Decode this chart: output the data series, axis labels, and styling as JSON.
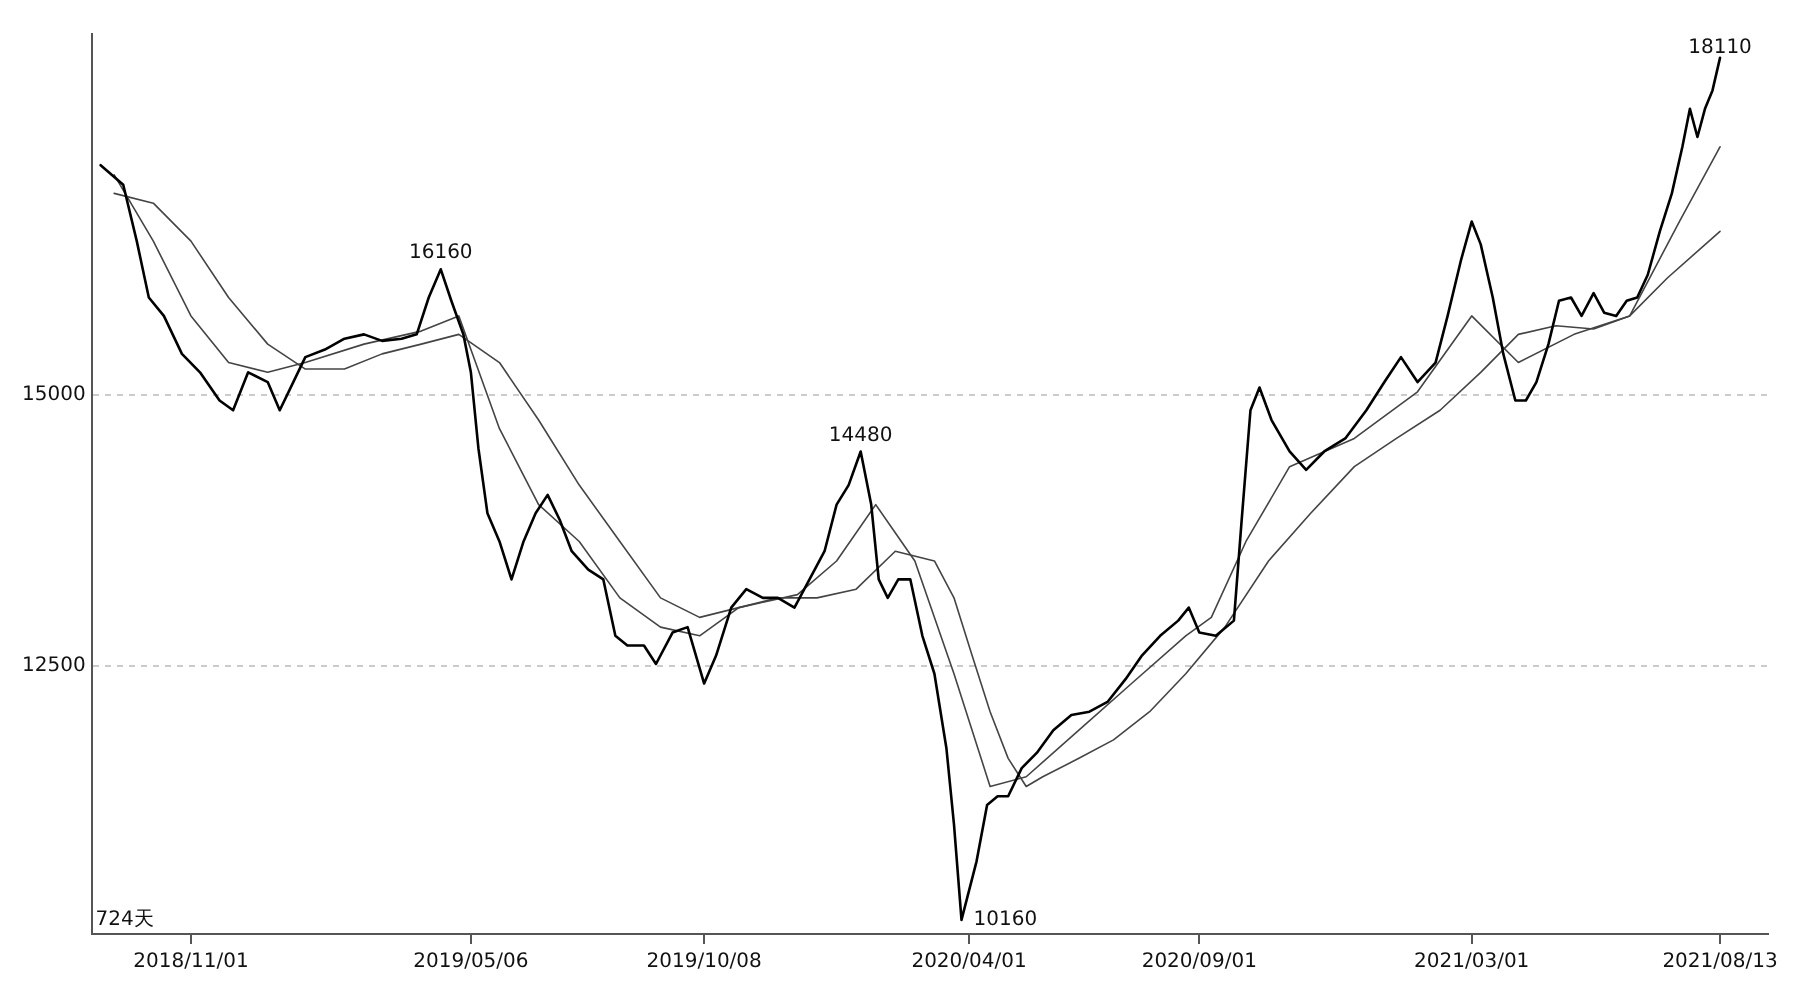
{
  "chart_data": {
    "type": "line",
    "marker": "none",
    "line_style": "solid",
    "legend": false,
    "grid": "y",
    "xlim": [
      "2018-08-27",
      "2021-09-14"
    ],
    "xticks": [
      {
        "value": "2018-11-01",
        "label": "2018/11/01"
      },
      {
        "value": "2019-05-06",
        "label": "2019/05/06"
      },
      {
        "value": "2019-10-08",
        "label": "2019/10/08"
      },
      {
        "value": "2020-04-01",
        "label": "2020/04/01"
      },
      {
        "value": "2020-09-01",
        "label": "2020/09/01"
      },
      {
        "value": "2021-03-01",
        "label": "2021/03/01"
      },
      {
        "value": "2021-08-13",
        "label": "2021/08/13"
      }
    ],
    "ylim": [
      10030,
      18330
    ],
    "yticks": [
      12500,
      15000
    ],
    "annotations": [
      {
        "text": "16160",
        "x": "2019-04-16",
        "y": 16160
      },
      {
        "text": "14480",
        "x": "2020-01-20",
        "y": 14480
      },
      {
        "text": "10160",
        "x": "2020-03-27",
        "y": 10160
      },
      {
        "text": "18110",
        "x": "2021-08-13",
        "y": 18110
      },
      "724天"
    ],
    "series": [
      {
        "color": "#000000",
        "x": [
          "2018-09-02",
          "2018-09-17",
          "2018-09-26",
          "2018-10-04",
          "2018-10-14",
          "2018-10-26",
          "2018-11-07",
          "2018-11-20",
          "2018-11-29",
          "2018-12-09",
          "2018-12-22",
          "2018-12-30",
          "2019-01-08",
          "2019-01-16",
          "2019-01-29",
          "2019-02-11",
          "2019-02-24",
          "2019-03-08",
          "2019-03-21",
          "2019-03-31",
          "2019-04-08",
          "2019-04-16",
          "2019-04-23",
          "2019-05-01",
          "2019-05-06",
          "2019-05-11",
          "2019-05-17",
          "2019-05-25",
          "2019-06-02",
          "2019-06-10",
          "2019-06-18",
          "2019-06-26",
          "2019-07-04",
          "2019-07-12",
          "2019-07-23",
          "2019-08-02",
          "2019-08-10",
          "2019-08-18",
          "2019-08-29",
          "2019-09-06",
          "2019-09-17",
          "2019-09-27",
          "2019-10-08",
          "2019-10-16",
          "2019-10-26",
          "2019-11-05",
          "2019-11-16",
          "2019-11-26",
          "2019-12-07",
          "2019-12-17",
          "2019-12-27",
          "2020-01-04",
          "2020-01-12",
          "2020-01-20",
          "2020-01-27",
          "2020-02-01",
          "2020-02-07",
          "2020-02-14",
          "2020-02-22",
          "2020-03-01",
          "2020-03-09",
          "2020-03-17",
          "2020-03-22",
          "2020-03-27",
          "2020-04-01",
          "2020-04-06",
          "2020-04-13",
          "2020-04-20",
          "2020-04-27",
          "2020-05-06",
          "2020-05-16",
          "2020-05-27",
          "2020-06-08",
          "2020-06-20",
          "2020-07-02",
          "2020-07-14",
          "2020-07-25",
          "2020-08-06",
          "2020-08-18",
          "2020-08-25",
          "2020-09-01",
          "2020-09-12",
          "2020-09-24",
          "2020-09-29",
          "2020-10-05",
          "2020-10-11",
          "2020-10-19",
          "2020-10-31",
          "2020-11-11",
          "2020-11-23",
          "2020-12-07",
          "2020-12-21",
          "2021-01-02",
          "2021-01-13",
          "2021-01-24",
          "2021-02-05",
          "2021-02-13",
          "2021-02-22",
          "2021-03-01",
          "2021-03-07",
          "2021-03-15",
          "2021-03-22",
          "2021-03-30",
          "2021-04-06",
          "2021-04-13",
          "2021-04-21",
          "2021-04-28",
          "2021-05-06",
          "2021-05-13",
          "2021-05-21",
          "2021-05-28",
          "2021-06-05",
          "2021-06-12",
          "2021-06-19",
          "2021-06-26",
          "2021-07-04",
          "2021-07-12",
          "2021-07-19",
          "2021-07-24",
          "2021-07-29",
          "2021-08-03",
          "2021-08-08",
          "2021-08-13"
        ],
        "values": [
          17120,
          16940,
          16420,
          15900,
          15730,
          15380,
          15210,
          14950,
          14860,
          15210,
          15120,
          14860,
          15120,
          15350,
          15420,
          15520,
          15560,
          15500,
          15520,
          15560,
          15900,
          16160,
          15870,
          15560,
          15210,
          14510,
          13910,
          13650,
          13300,
          13650,
          13910,
          14080,
          13850,
          13560,
          13390,
          13300,
          12780,
          12690,
          12690,
          12520,
          12810,
          12860,
          12340,
          12600,
          13040,
          13210,
          13130,
          13130,
          13040,
          13300,
          13560,
          13990,
          14170,
          14480,
          13990,
          13300,
          13130,
          13300,
          13300,
          12780,
          12430,
          11740,
          11040,
          10160,
          10430,
          10700,
          11220,
          11300,
          11300,
          11560,
          11700,
          11910,
          12050,
          12080,
          12170,
          12380,
          12600,
          12780,
          12920,
          13040,
          12810,
          12780,
          12920,
          13820,
          14860,
          15070,
          14770,
          14480,
          14310,
          14480,
          14600,
          14860,
          15120,
          15350,
          15120,
          15300,
          15730,
          16250,
          16600,
          16390,
          15900,
          15380,
          14950,
          14950,
          15120,
          15470,
          15870,
          15900,
          15730,
          15940,
          15760,
          15730,
          15870,
          15900,
          16110,
          16510,
          16860,
          17290,
          17640,
          17380,
          17640,
          17810,
          18110
        ]
      },
      {
        "color": "#444444",
        "x": [
          "2018-09-11",
          "2018-10-07",
          "2018-11-01",
          "2018-11-26",
          "2018-12-22",
          "2019-01-16",
          "2019-02-24",
          "2019-04-03",
          "2019-04-28",
          "2019-05-25",
          "2019-06-20",
          "2019-07-17",
          "2019-08-13",
          "2019-09-09",
          "2019-10-05",
          "2019-10-31",
          "2019-12-09",
          "2020-01-04",
          "2020-01-30",
          "2020-02-25",
          "2020-03-22",
          "2020-04-15",
          "2020-05-09",
          "2020-06-13",
          "2020-07-18",
          "2020-08-23",
          "2020-09-09",
          "2020-10-02",
          "2020-10-31",
          "2020-12-13",
          "2021-01-24",
          "2021-03-01",
          "2021-04-01",
          "2021-05-08",
          "2021-06-14",
          "2021-07-17",
          "2021-08-13"
        ],
        "values": [
          17030,
          16420,
          15730,
          15300,
          15210,
          15300,
          15470,
          15590,
          15730,
          14690,
          13990,
          13650,
          13130,
          12860,
          12780,
          13040,
          13160,
          13470,
          13990,
          13470,
          12430,
          11390,
          11480,
          11910,
          12340,
          12780,
          12950,
          13650,
          14340,
          14600,
          15030,
          15730,
          15300,
          15560,
          15730,
          16600,
          17290
        ]
      },
      {
        "color": "#444444",
        "x": [
          "2018-09-11",
          "2018-10-07",
          "2018-11-01",
          "2018-11-26",
          "2018-12-22",
          "2019-01-16",
          "2019-02-11",
          "2019-03-08",
          "2019-04-03",
          "2019-04-28",
          "2019-05-25",
          "2019-06-20",
          "2019-07-17",
          "2019-08-13",
          "2019-09-09",
          "2019-10-05",
          "2019-10-31",
          "2019-11-26",
          "2019-12-22",
          "2020-01-17",
          "2020-02-12",
          "2020-03-09",
          "2020-03-22",
          "2020-04-03",
          "2020-04-15",
          "2020-04-27",
          "2020-05-09",
          "2020-05-20",
          "2020-06-13",
          "2020-07-06",
          "2020-07-30",
          "2020-08-23",
          "2020-09-18",
          "2020-10-17",
          "2020-11-14",
          "2020-12-13",
          "2021-01-10",
          "2021-02-08",
          "2021-03-07",
          "2021-04-01",
          "2021-04-26",
          "2021-05-21",
          "2021-06-14",
          "2021-07-09",
          "2021-08-13"
        ],
        "values": [
          16860,
          16770,
          16420,
          15900,
          15470,
          15240,
          15240,
          15380,
          15470,
          15560,
          15300,
          14770,
          14170,
          13650,
          13130,
          12950,
          13040,
          13130,
          13130,
          13210,
          13560,
          13470,
          13130,
          12600,
          12080,
          11650,
          11390,
          11480,
          11650,
          11820,
          12080,
          12430,
          12860,
          13470,
          13910,
          14340,
          14600,
          14860,
          15210,
          15560,
          15640,
          15610,
          15730,
          16080,
          16510
        ]
      }
    ]
  }
}
